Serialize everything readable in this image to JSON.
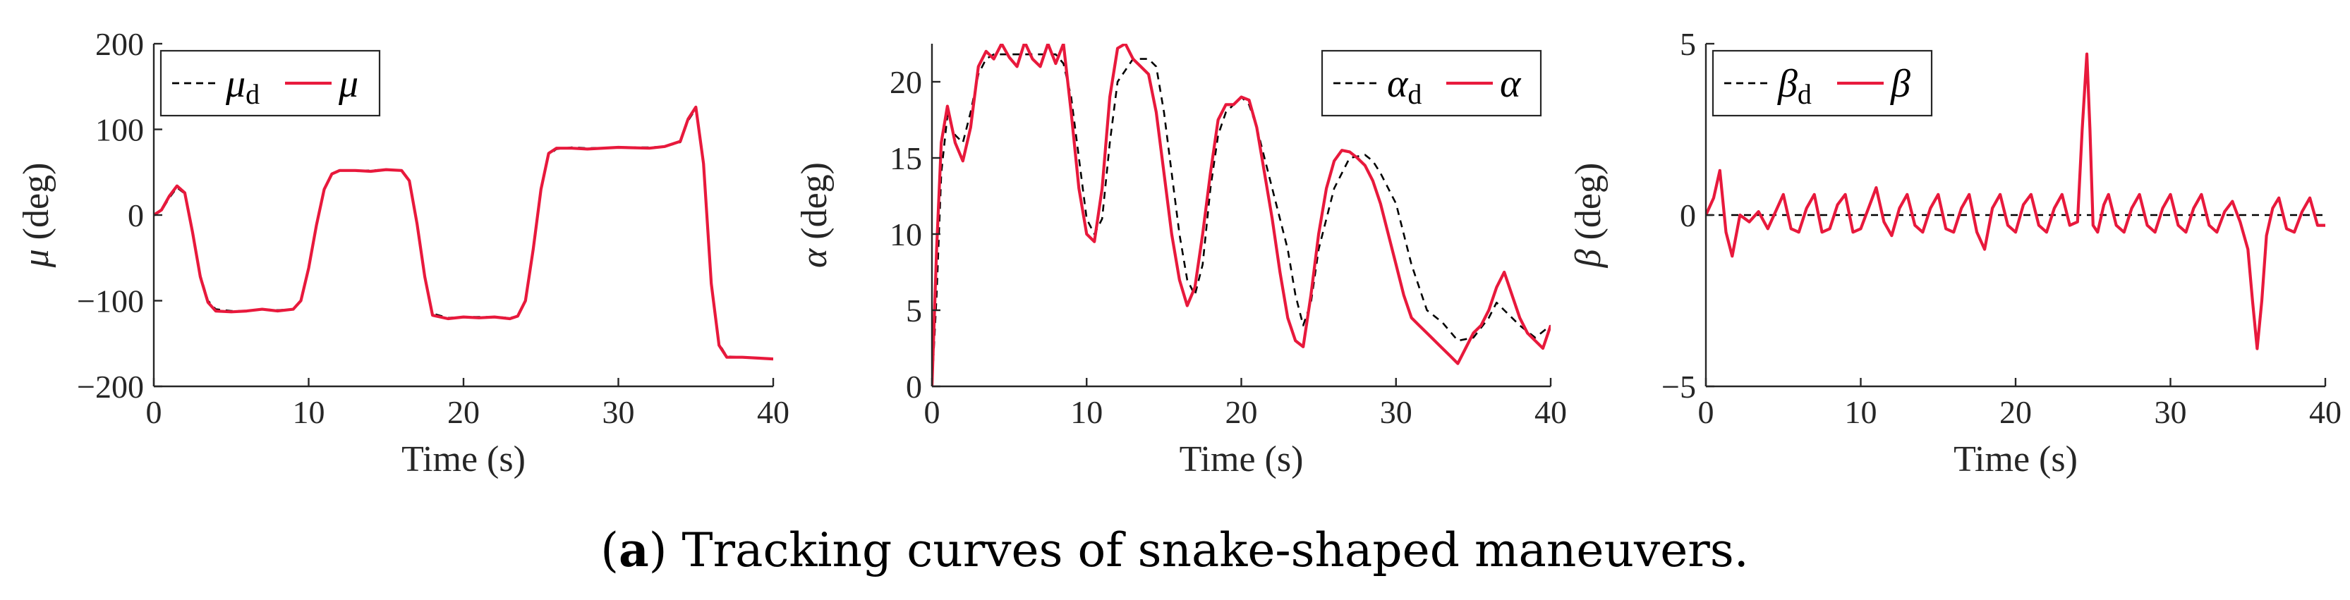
{
  "caption": {
    "open": "(",
    "letter": "a",
    "rest": ") Tracking curves of snake-shaped maneuvers."
  },
  "colors": {
    "reference": "#000000",
    "actual": "#e8193c",
    "axis": "#262626"
  },
  "chart_data": [
    {
      "type": "line",
      "xlabel": "Time (s)",
      "ylabel_symbol": "μ",
      "ylabel_unit": "(deg)",
      "xlim": [
        0,
        40
      ],
      "ylim": [
        -200,
        200
      ],
      "xticks": [
        0,
        10,
        20,
        30,
        40
      ],
      "yticks": [
        -200,
        -100,
        0,
        100,
        200
      ],
      "xtick_labels": [
        "0",
        "10",
        "20",
        "30",
        "40"
      ],
      "ytick_labels": [
        "−200",
        "−100",
        "0",
        "100",
        "200"
      ],
      "legend_position": "top-left",
      "series": [
        {
          "name": "μd",
          "name_symbol": "μ",
          "name_sub": "d",
          "style": "dashed",
          "x": [
            0,
            0.5,
            1,
            1.5,
            2,
            2.5,
            3,
            3.5,
            4,
            5,
            6,
            7,
            8,
            9,
            9.5,
            10,
            10.5,
            11,
            11.5,
            12,
            13,
            14,
            15,
            16,
            16.5,
            17,
            17.5,
            18,
            19,
            20,
            21,
            22,
            23,
            23.5,
            24,
            24.5,
            25,
            25.5,
            26,
            27,
            28,
            30,
            32,
            33,
            34,
            34.5,
            35,
            35.5,
            36,
            36.5,
            37,
            38,
            39,
            40
          ],
          "y": [
            0,
            5,
            20,
            32,
            25,
            -20,
            -70,
            -100,
            -110,
            -112,
            -112,
            -110,
            -111,
            -110,
            -100,
            -60,
            -10,
            30,
            48,
            52,
            52,
            52,
            53,
            52,
            40,
            -10,
            -70,
            -115,
            -120,
            -119,
            -119,
            -119,
            -120,
            -118,
            -100,
            -40,
            30,
            70,
            77,
            79,
            78,
            79,
            79,
            80,
            85,
            110,
            124,
            60,
            -80,
            -150,
            -165,
            -166,
            -167,
            -168
          ]
        },
        {
          "name": "μ",
          "name_symbol": "μ",
          "name_sub": "",
          "style": "solid",
          "x": [
            0,
            0.5,
            1,
            1.5,
            2,
            2.5,
            3,
            3.5,
            4,
            5,
            6,
            7,
            8,
            9,
            9.5,
            10,
            10.5,
            11,
            11.5,
            12,
            13,
            14,
            15,
            16,
            16.5,
            17,
            17.5,
            18,
            19,
            20,
            21,
            22,
            23,
            23.5,
            24,
            24.5,
            25,
            25.5,
            26,
            27,
            28,
            30,
            32,
            33,
            34,
            34.5,
            35,
            35.5,
            36,
            36.5,
            37,
            38,
            39,
            40
          ],
          "y": [
            0,
            6,
            22,
            34,
            26,
            -20,
            -72,
            -102,
            -112,
            -113,
            -112,
            -110,
            -112,
            -110,
            -100,
            -62,
            -12,
            30,
            48,
            52,
            52,
            51,
            53,
            52,
            40,
            -10,
            -72,
            -117,
            -121,
            -119,
            -120,
            -119,
            -121,
            -118,
            -100,
            -40,
            30,
            72,
            78,
            78,
            77,
            79,
            78,
            80,
            86,
            112,
            126,
            60,
            -80,
            -152,
            -166,
            -166,
            -167,
            -168
          ]
        }
      ]
    },
    {
      "type": "line",
      "xlabel": "Time (s)",
      "ylabel_symbol": "α",
      "ylabel_unit": "(deg)",
      "xlim": [
        0,
        40
      ],
      "ylim": [
        0,
        22.5
      ],
      "xticks": [
        0,
        10,
        20,
        30,
        40
      ],
      "yticks": [
        0,
        5,
        10,
        15,
        20
      ],
      "xtick_labels": [
        "0",
        "10",
        "20",
        "30",
        "40"
      ],
      "ytick_labels": [
        "0",
        "5",
        "10",
        "15",
        "20"
      ],
      "legend_position": "top-right",
      "series": [
        {
          "name": "αd",
          "name_symbol": "α",
          "name_sub": "d",
          "style": "dashed",
          "x": [
            0,
            0.3,
            0.6,
            1,
            1.5,
            2,
            2.5,
            3,
            3.5,
            4,
            5,
            6,
            7,
            8,
            8.5,
            9,
            9.5,
            10,
            10.5,
            11,
            11.5,
            12,
            13,
            14,
            14.5,
            15,
            15.5,
            16,
            16.5,
            17,
            17.5,
            18,
            18.5,
            19,
            20,
            20.5,
            21,
            22,
            22.5,
            23,
            23.5,
            24,
            24.5,
            25,
            26,
            27,
            28,
            28.5,
            29,
            29.5,
            30,
            31,
            32,
            33,
            34,
            35,
            36,
            36.5,
            37,
            38,
            39,
            40
          ],
          "y": [
            0,
            6,
            14,
            17.8,
            16.5,
            16,
            18,
            20.5,
            21.5,
            21.8,
            21.8,
            21.8,
            21.8,
            21.8,
            21.2,
            19,
            15,
            11,
            10,
            11,
            16,
            20,
            21.5,
            21.5,
            21,
            18,
            14,
            10,
            7,
            6,
            8,
            13,
            16.5,
            18,
            19,
            18.5,
            17,
            13,
            11,
            9,
            6,
            4,
            5.5,
            9,
            13,
            15,
            15.2,
            14.8,
            14,
            13,
            12,
            8,
            5,
            4.2,
            3,
            3.2,
            4.5,
            5.5,
            5,
            4,
            3.2,
            4
          ]
        },
        {
          "name": "α",
          "name_symbol": "α",
          "name_sub": "",
          "style": "solid",
          "x": [
            0,
            0.3,
            0.6,
            1,
            1.5,
            2,
            2.5,
            3,
            3.5,
            4,
            4.5,
            5,
            5.5,
            6,
            6.5,
            7,
            7.5,
            8,
            8.5,
            9,
            9.5,
            10,
            10.5,
            11,
            11.5,
            12,
            12.5,
            13,
            13.5,
            14,
            14.5,
            15,
            15.5,
            16,
            16.5,
            17,
            17.5,
            18,
            18.5,
            19,
            19.5,
            20,
            20.5,
            21,
            21.5,
            22,
            22.5,
            23,
            23.5,
            24,
            24.5,
            25,
            25.5,
            26,
            26.5,
            27,
            27.5,
            28,
            28.5,
            29,
            29.5,
            30,
            30.5,
            31,
            31.5,
            32,
            32.5,
            33,
            33.5,
            34,
            34.5,
            35,
            35.5,
            36,
            36.5,
            37,
            37.5,
            38,
            38.5,
            39,
            39.5,
            40
          ],
          "y": [
            0,
            9,
            16,
            18.4,
            16,
            14.8,
            17,
            21,
            22,
            21.5,
            22.5,
            21.6,
            21,
            22.6,
            21.5,
            21,
            22.5,
            21.2,
            22.5,
            18,
            13,
            10,
            9.5,
            13,
            19,
            22.2,
            22.5,
            21.5,
            21,
            20.5,
            18,
            14,
            10,
            7,
            5.3,
            6.5,
            10,
            14,
            17.5,
            18.5,
            18.5,
            19,
            18.8,
            17,
            14,
            11,
            7.5,
            4.5,
            3,
            2.6,
            6,
            10,
            13,
            14.8,
            15.5,
            15.4,
            15,
            14.5,
            13.5,
            12,
            10,
            8,
            6,
            4.5,
            4,
            3.5,
            3,
            2.5,
            2,
            1.5,
            2.5,
            3.5,
            4,
            5,
            6.5,
            7.5,
            6,
            4.5,
            3.5,
            3,
            2.5,
            4
          ]
        }
      ]
    },
    {
      "type": "line",
      "xlabel": "Time (s)",
      "ylabel_symbol": "β",
      "ylabel_unit": "(deg)",
      "xlim": [
        0,
        40
      ],
      "ylim": [
        -5,
        5
      ],
      "xticks": [
        0,
        10,
        20,
        30,
        40
      ],
      "yticks": [
        -5,
        0,
        5
      ],
      "xtick_labels": [
        "0",
        "10",
        "20",
        "30",
        "40"
      ],
      "ytick_labels": [
        "−5",
        "0",
        "5"
      ],
      "legend_position": "top-left",
      "series": [
        {
          "name": "βd",
          "name_symbol": "β",
          "name_sub": "d",
          "style": "dashed",
          "x": [
            0,
            40
          ],
          "y": [
            0,
            0
          ]
        },
        {
          "name": "β",
          "name_symbol": "β",
          "name_sub": "",
          "style": "solid",
          "x": [
            0,
            0.5,
            0.9,
            1.3,
            1.7,
            2.2,
            2.8,
            3.4,
            4,
            4.5,
            5,
            5.5,
            6,
            6.5,
            7,
            7.5,
            8,
            8.5,
            9,
            9.5,
            10,
            10.5,
            11,
            11.5,
            12,
            12.5,
            13,
            13.5,
            14,
            14.5,
            15,
            15.5,
            16,
            16.5,
            17,
            17.5,
            18,
            18.5,
            19,
            19.5,
            20,
            20.5,
            21,
            21.5,
            22,
            22.5,
            23,
            23.5,
            24,
            24.3,
            24.6,
            24.8,
            25,
            25.3,
            25.7,
            26,
            26.5,
            27,
            27.5,
            28,
            28.5,
            29,
            29.5,
            30,
            30.5,
            31,
            31.5,
            32,
            32.5,
            33,
            33.5,
            34,
            34.5,
            35,
            35.3,
            35.6,
            35.9,
            36.2,
            36.6,
            37,
            37.5,
            38,
            38.5,
            39,
            39.5,
            40
          ],
          "y": [
            0,
            0.5,
            1.3,
            -0.5,
            -1.2,
            0,
            -0.2,
            0.1,
            -0.4,
            0.1,
            0.6,
            -0.4,
            -0.5,
            0.2,
            0.6,
            -0.5,
            -0.4,
            0.3,
            0.6,
            -0.5,
            -0.4,
            0.2,
            0.8,
            -0.2,
            -0.6,
            0.2,
            0.6,
            -0.3,
            -0.5,
            0.2,
            0.6,
            -0.4,
            -0.5,
            0.2,
            0.6,
            -0.5,
            -1,
            0.2,
            0.6,
            -0.3,
            -0.5,
            0.3,
            0.6,
            -0.3,
            -0.5,
            0.2,
            0.6,
            -0.3,
            -0.2,
            2.5,
            4.7,
            2.5,
            -0.3,
            -0.5,
            0.3,
            0.6,
            -0.3,
            -0.5,
            0.2,
            0.6,
            -0.3,
            -0.5,
            0.2,
            0.6,
            -0.3,
            -0.5,
            0.2,
            0.6,
            -0.3,
            -0.5,
            0.1,
            0.4,
            -0.2,
            -1,
            -2.5,
            -3.9,
            -2.5,
            -0.6,
            0.2,
            0.5,
            -0.4,
            -0.5,
            0.1,
            0.5,
            -0.3,
            -0.3
          ]
        }
      ]
    }
  ]
}
